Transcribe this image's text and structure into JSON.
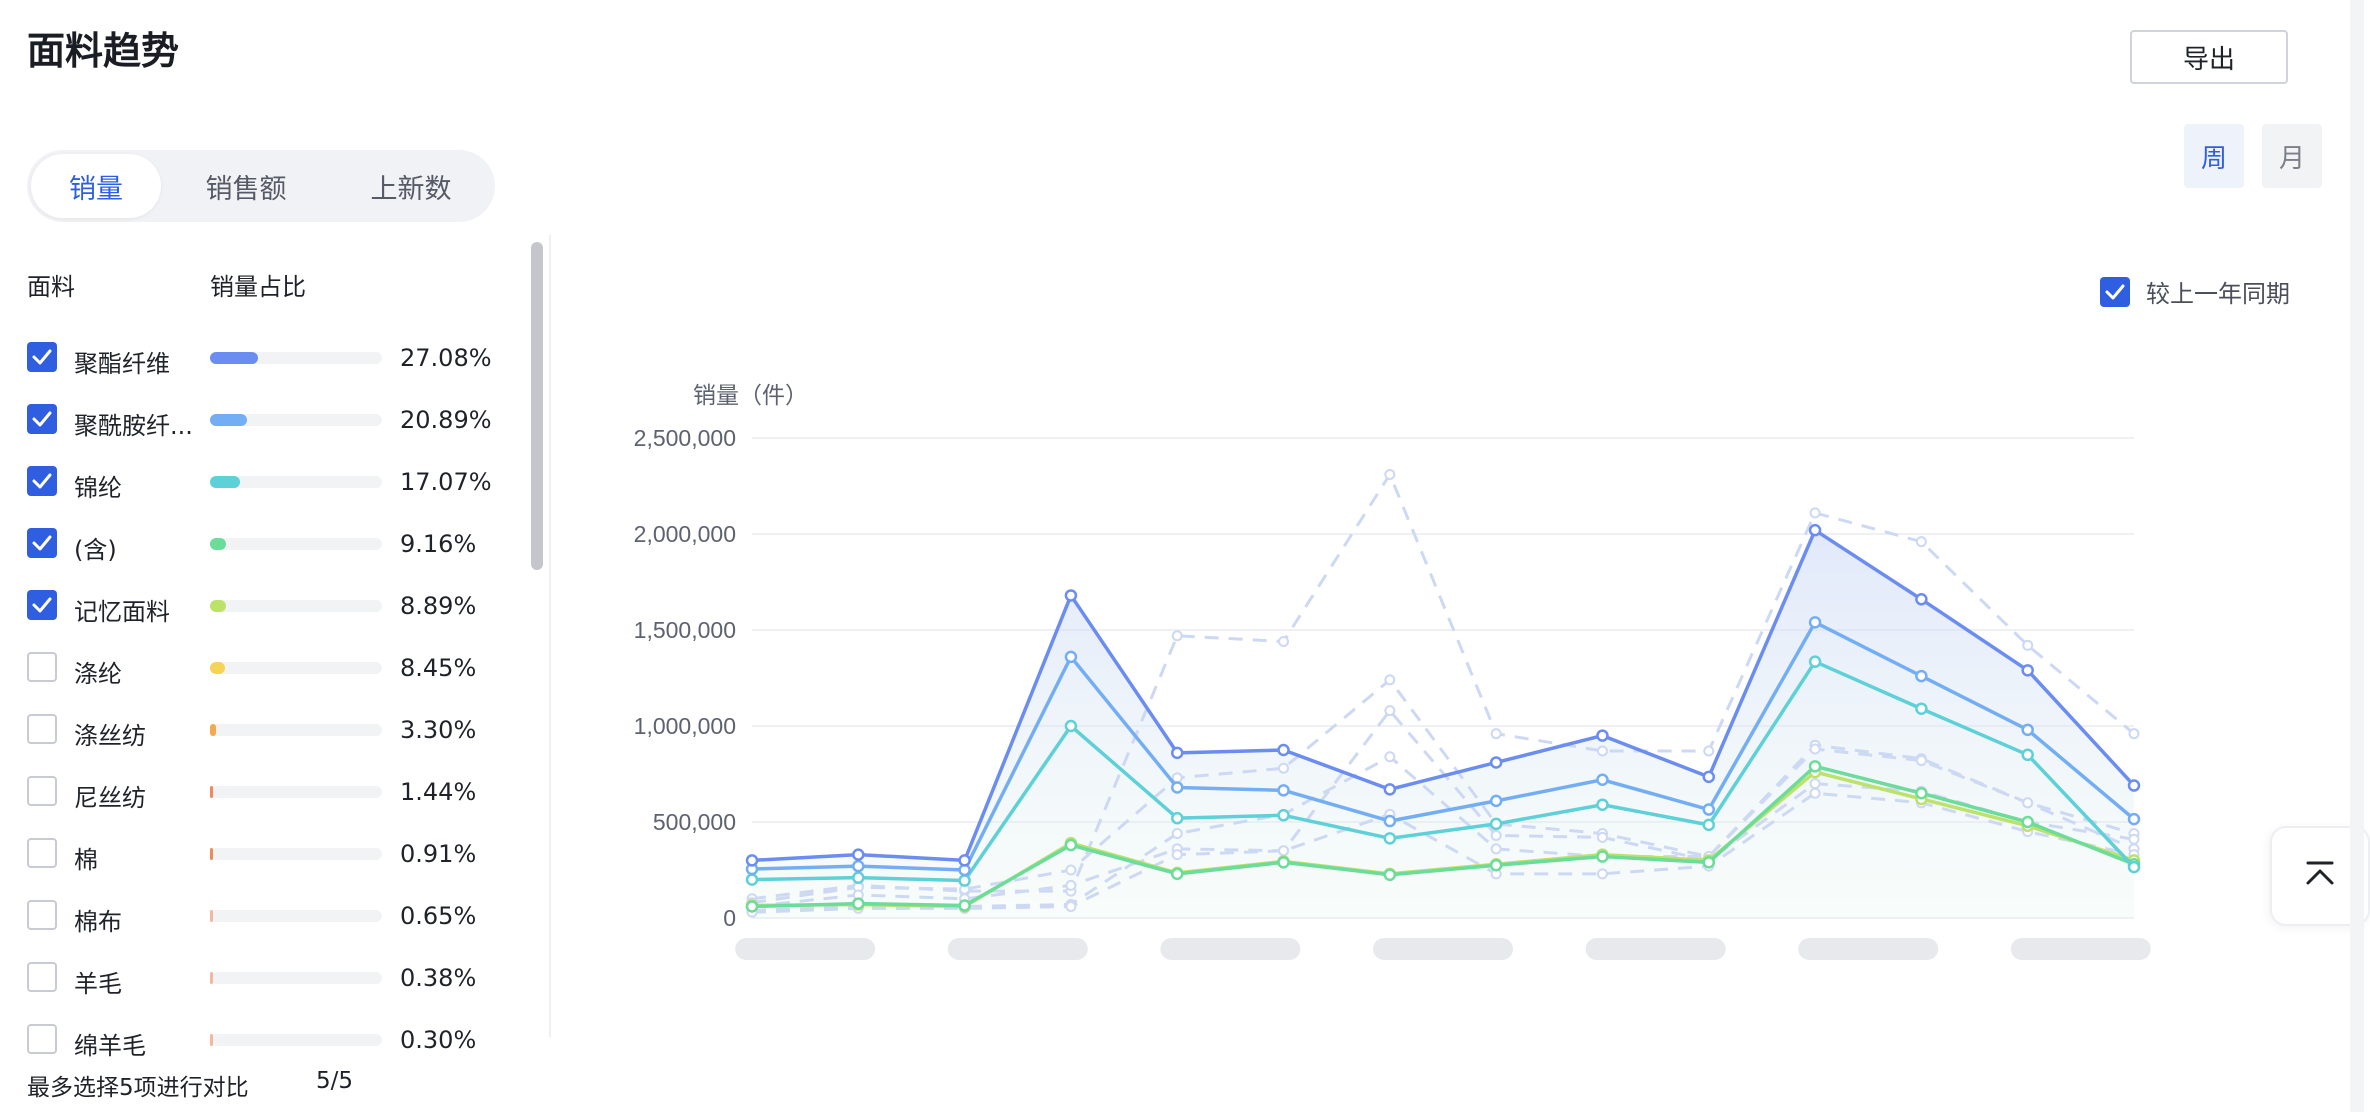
{
  "page": {
    "title": "面料趋势",
    "export_label": "导出"
  },
  "metric_tabs": [
    {
      "label": "销量",
      "active": true
    },
    {
      "label": "销售额",
      "active": false
    },
    {
      "label": "上新数",
      "active": false
    }
  ],
  "period_tabs": [
    {
      "label": "周",
      "active": true
    },
    {
      "label": "月",
      "active": false
    }
  ],
  "list": {
    "col_fabric": "面料",
    "col_share": "销量占比",
    "items": [
      {
        "name": "聚酯纤维",
        "pct": "27.08%",
        "share": 0.2708,
        "checked": true,
        "color": "#6b8cf0"
      },
      {
        "name": "聚酰胺纤...",
        "pct": "20.89%",
        "share": 0.2089,
        "checked": true,
        "color": "#73aef5"
      },
      {
        "name": "锦纶",
        "pct": "17.07%",
        "share": 0.1707,
        "checked": true,
        "color": "#5ed0d8"
      },
      {
        "name": "(含)",
        "pct": "9.16%",
        "share": 0.0916,
        "checked": true,
        "color": "#6bdc9a"
      },
      {
        "name": "记忆面料",
        "pct": "8.89%",
        "share": 0.0889,
        "checked": true,
        "color": "#bde26a"
      },
      {
        "name": "涤纶",
        "pct": "8.45%",
        "share": 0.0845,
        "checked": false,
        "color": "#f5d357"
      },
      {
        "name": "涤丝纺",
        "pct": "3.30%",
        "share": 0.033,
        "checked": false,
        "color": "#f4a94e"
      },
      {
        "name": "尼丝纺",
        "pct": "1.44%",
        "share": 0.0144,
        "checked": false,
        "color": "#f08a5d"
      },
      {
        "name": "棉",
        "pct": "0.91%",
        "share": 0.0091,
        "checked": false,
        "color": "#f08a5d"
      },
      {
        "name": "棉布",
        "pct": "0.65%",
        "share": 0.0065,
        "checked": false,
        "color": "#f5b6a0"
      },
      {
        "name": "羊毛",
        "pct": "0.38%",
        "share": 0.0038,
        "checked": false,
        "color": "#f5b6a0"
      },
      {
        "name": "绵羊毛",
        "pct": "0.30%",
        "share": 0.003,
        "checked": false,
        "color": "#f5b6a0"
      }
    ]
  },
  "footer": {
    "limit_text": "最多选择5项进行对比",
    "count": "5/5"
  },
  "compare": {
    "label": "较上一年同期",
    "checked": true
  },
  "icons": {
    "check": "check-icon",
    "back_to_top": "back-to-top-icon"
  },
  "chart_data": {
    "type": "line",
    "ylabel": "销量（件）",
    "ylim": [
      0,
      2500000
    ],
    "yticks": [
      0,
      500000,
      1000000,
      1500000,
      2000000,
      2500000
    ],
    "ytick_labels": [
      "0",
      "500,000",
      "1,000,000",
      "1,500,000",
      "2,000,000",
      "2,500,000"
    ],
    "x_count": 14,
    "x_labels_blurred": true,
    "series": [
      {
        "name": "聚酯纤维",
        "color": "#6b8cf0",
        "values": [
          300000,
          330000,
          300000,
          1680000,
          860000,
          875000,
          670000,
          810000,
          950000,
          735000,
          2020000,
          1660000,
          1290000,
          690000
        ]
      },
      {
        "name": "聚酰胺纤...",
        "color": "#73aef5",
        "values": [
          255000,
          270000,
          250000,
          1360000,
          680000,
          665000,
          505000,
          610000,
          720000,
          565000,
          1540000,
          1260000,
          980000,
          515000
        ]
      },
      {
        "name": "锦纶",
        "color": "#5ed0d8",
        "values": [
          200000,
          210000,
          195000,
          1000000,
          520000,
          535000,
          415000,
          490000,
          590000,
          485000,
          1335000,
          1090000,
          850000,
          265000
        ]
      },
      {
        "name": "(含)",
        "color": "#6bdc9a",
        "values": [
          60000,
          75000,
          65000,
          380000,
          230000,
          290000,
          225000,
          275000,
          320000,
          290000,
          790000,
          650000,
          500000,
          280000
        ]
      },
      {
        "name": "记忆面料",
        "color": "#bde26a",
        "values": [
          65000,
          70000,
          60000,
          390000,
          235000,
          295000,
          230000,
          280000,
          330000,
          300000,
          760000,
          620000,
          480000,
          300000
        ]
      }
    ],
    "previous_year_series": [
      {
        "values": [
          100000,
          170000,
          140000,
          140000,
          1470000,
          1440000,
          2310000,
          960000,
          870000,
          870000,
          2110000,
          1960000,
          1420000,
          960000
        ]
      },
      {
        "values": [
          80000,
          160000,
          150000,
          250000,
          730000,
          780000,
          1240000,
          490000,
          440000,
          320000,
          900000,
          830000,
          600000,
          440000
        ]
      },
      {
        "values": [
          60000,
          120000,
          100000,
          170000,
          360000,
          350000,
          1080000,
          430000,
          420000,
          300000,
          700000,
          660000,
          500000,
          410000
        ]
      },
      {
        "values": [
          40000,
          60000,
          60000,
          70000,
          440000,
          540000,
          840000,
          360000,
          320000,
          320000,
          880000,
          820000,
          600000,
          360000
        ]
      },
      {
        "values": [
          30000,
          50000,
          50000,
          60000,
          330000,
          350000,
          540000,
          230000,
          230000,
          270000,
          650000,
          600000,
          450000,
          330000
        ]
      }
    ]
  }
}
